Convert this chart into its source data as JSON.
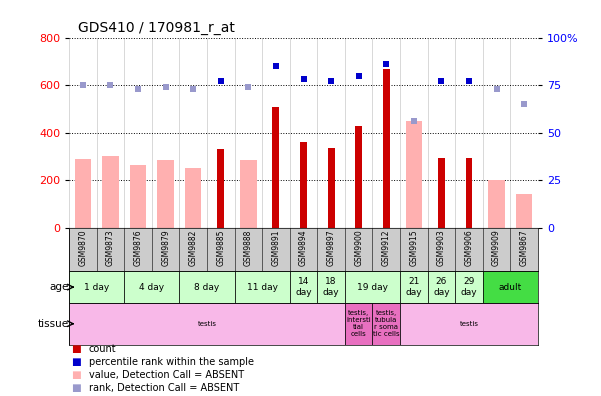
{
  "title": "GDS410 / 170981_r_at",
  "samples": [
    "GSM9870",
    "GSM9873",
    "GSM9876",
    "GSM9879",
    "GSM9882",
    "GSM9885",
    "GSM9888",
    "GSM9891",
    "GSM9894",
    "GSM9897",
    "GSM9900",
    "GSM9912",
    "GSM9915",
    "GSM9903",
    "GSM9906",
    "GSM9909",
    "GSM9867"
  ],
  "count_values": [
    0,
    0,
    0,
    0,
    0,
    330,
    0,
    510,
    360,
    335,
    430,
    670,
    0,
    295,
    295,
    0,
    0
  ],
  "count_absent": [
    290,
    300,
    265,
    285,
    250,
    0,
    285,
    0,
    0,
    0,
    0,
    0,
    450,
    0,
    0,
    200,
    140
  ],
  "rank_present": [
    null,
    null,
    null,
    null,
    null,
    77,
    null,
    85,
    78,
    77,
    80,
    86,
    null,
    77,
    77,
    null,
    null
  ],
  "rank_absent": [
    75,
    75,
    73,
    74,
    73,
    null,
    74,
    null,
    null,
    null,
    null,
    null,
    56,
    null,
    null,
    73,
    65
  ],
  "ylim_left": [
    0,
    800
  ],
  "ylim_right": [
    0,
    100
  ],
  "yticks_left": [
    0,
    200,
    400,
    600,
    800
  ],
  "yticks_right": [
    0,
    25,
    50,
    75,
    100
  ],
  "age_groups": [
    {
      "label": "1 day",
      "start": 0,
      "end": 2,
      "adult": false
    },
    {
      "label": "4 day",
      "start": 2,
      "end": 4,
      "adult": false
    },
    {
      "label": "8 day",
      "start": 4,
      "end": 6,
      "adult": false
    },
    {
      "label": "11 day",
      "start": 6,
      "end": 8,
      "adult": false
    },
    {
      "label": "14\nday",
      "start": 8,
      "end": 9,
      "adult": false
    },
    {
      "label": "18\nday",
      "start": 9,
      "end": 10,
      "adult": false
    },
    {
      "label": "19 day",
      "start": 10,
      "end": 12,
      "adult": false
    },
    {
      "label": "21\nday",
      "start": 12,
      "end": 13,
      "adult": false
    },
    {
      "label": "26\nday",
      "start": 13,
      "end": 14,
      "adult": false
    },
    {
      "label": "29\nday",
      "start": 14,
      "end": 15,
      "adult": false
    },
    {
      "label": "adult",
      "start": 15,
      "end": 17,
      "adult": true
    }
  ],
  "tissue_groups": [
    {
      "label": "testis",
      "start": 0,
      "end": 10,
      "color": "#f8b8e8"
    },
    {
      "label": "testis,\nintersti\ntial\ncells",
      "start": 10,
      "end": 11,
      "color": "#e870c0"
    },
    {
      "label": "testis,\ntubula\nr soma\ntic cells",
      "start": 11,
      "end": 12,
      "color": "#e870c0"
    },
    {
      "label": "testis",
      "start": 12,
      "end": 17,
      "color": "#f8b8e8"
    }
  ],
  "count_color": "#cc0000",
  "count_absent_color": "#ffb0b0",
  "rank_color": "#0000cc",
  "rank_absent_color": "#9999cc",
  "age_bg_color": "#ccffcc",
  "age_adult_color": "#44dd44",
  "xticklabel_bg": "#cccccc",
  "legend_items": [
    {
      "color": "#cc0000",
      "label": "count"
    },
    {
      "color": "#0000cc",
      "label": "percentile rank within the sample"
    },
    {
      "color": "#ffb0b0",
      "label": "value, Detection Call = ABSENT"
    },
    {
      "color": "#9999cc",
      "label": "rank, Detection Call = ABSENT"
    }
  ]
}
